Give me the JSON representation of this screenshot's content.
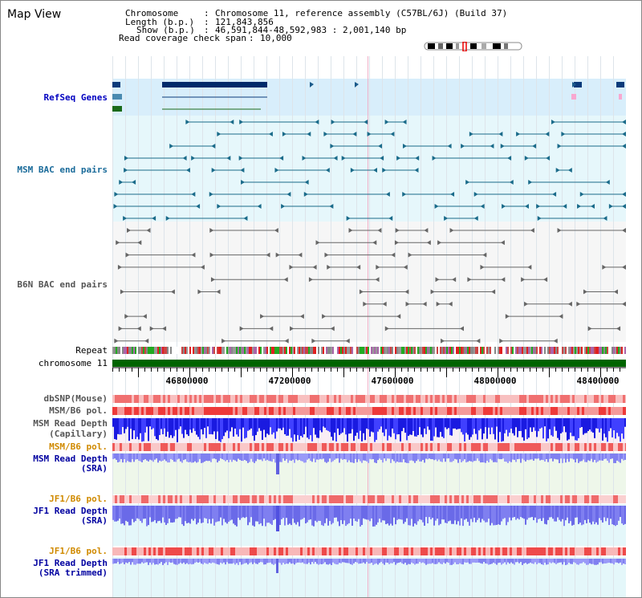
{
  "title": "Map View",
  "header": {
    "chromosome_label": "Chromosome",
    "chromosome_value": "Chromosome 11, reference assembly (C57BL/6J) (Build 37)",
    "length_label": "Length (b.p.)",
    "length_value": "121,843,856",
    "show_label": "Show (b.p.)",
    "show_value": "46,591,844-48,592,983 : 2,001,140 bp",
    "coverage_label": "Read coverage check span",
    "coverage_value": "10,000"
  },
  "tracks": {
    "refseq": "RefSeq Genes",
    "msm_bac": "MSM BAC end pairs",
    "b6n_bac": "B6N BAC end pairs",
    "repeat": "Repeat",
    "chromosome": "chromosome 11",
    "dbsnp": "dbSNP(Mouse)",
    "msm_b6_pol_1": "MSM/B6 pol.",
    "msm_depth_cap_1": "MSM Read Depth",
    "msm_depth_cap_2": "(Capillary)",
    "msm_b6_pol_2": "MSM/B6 pol.",
    "msm_depth_sra_1": "MSM Read Depth",
    "msm_depth_sra_2": "(SRA)",
    "jf1_b6_pol_1": "JF1/B6 pol.",
    "jf1_depth_sra_1": "JF1 Read Depth",
    "jf1_depth_sra_2": "(SRA)",
    "jf1_b6_pol_2": "JF1/B6 pol.",
    "jf1_depth_trim_1": "JF1 Read Depth",
    "jf1_depth_trim_2": "(SRA trimmed)"
  },
  "axis": {
    "ticks": [
      "46800000",
      "47200000",
      "47600000",
      "48000000",
      "48400000"
    ]
  },
  "colors": {
    "refseq_label": "#0000c0",
    "msm_label": "#1a6b9a",
    "b6n_label": "#555555",
    "pol_label": "#d08a00",
    "depth_label": "#0000a0"
  }
}
